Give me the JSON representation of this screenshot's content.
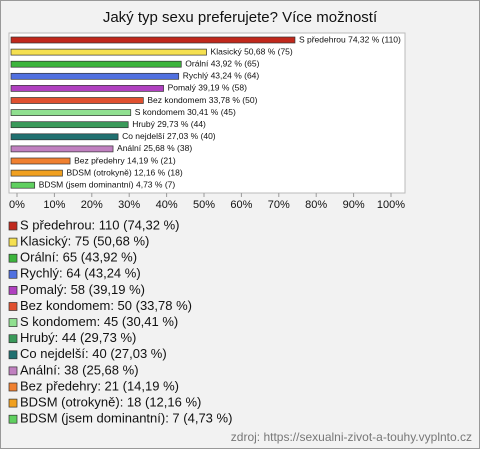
{
  "chart_data": {
    "type": "bar",
    "orientation": "horizontal",
    "title": "Jaký typ sexu preferujete? Více možností",
    "categories": [
      "S předehrou",
      "Klasický",
      "Orální",
      "Rychlý",
      "Pomalý",
      "Bez kondomem",
      "S kondomem",
      "Hrubý",
      "Co nejdelší",
      "Anální",
      "Bez předehry",
      "BDSM (otrokyně)",
      "BDSM (jsem dominantní)"
    ],
    "values": [
      74.32,
      50.68,
      43.92,
      43.24,
      39.19,
      33.78,
      30.41,
      29.73,
      27.03,
      25.68,
      14.19,
      12.16,
      4.73
    ],
    "value_labels": [
      "S předehrou 74,32 % (110)",
      "Klasický 50,68 % (75)",
      "Orální 43,92 % (65)",
      "Rychlý 43,24 % (64)",
      "Pomalý 39,19 % (58)",
      "Bez kondomem 33,78 % (50)",
      "S kondomem 30,41 % (45)",
      "Hrubý 29,73 % (44)",
      "Co nejdelší 27,03 % (40)",
      "Anální 25,68 % (38)",
      "Bez předehry 14,19 % (21)",
      "BDSM (otrokyně) 12,16 % (18)",
      "BDSM (jsem dominantní) 4,73 % (7)"
    ],
    "colors": [
      "#c0281c",
      "#f5e050",
      "#3cb43c",
      "#5070e0",
      "#b040c0",
      "#e05030",
      "#90e090",
      "#3a9a5a",
      "#207070",
      "#c080c0",
      "#f08030",
      "#f0a020",
      "#60d060"
    ],
    "legend_labels": [
      "S předehrou: 110 (74,32 %)",
      "Klasický: 75 (50,68 %)",
      "Orální: 65 (43,92 %)",
      "Rychlý: 64 (43,24 %)",
      "Pomalý: 58 (39,19 %)",
      "Bez kondomem: 50 (33,78 %)",
      "S kondomem: 45 (30,41 %)",
      "Hrubý: 44 (29,73 %)",
      "Co nejdelší: 40 (27,03 %)",
      "Anální: 38 (25,68 %)",
      "Bez předehry: 21 (14,19 %)",
      "BDSM (otrokyně): 18 (12,16 %)",
      "BDSM (jsem dominantní): 7 (4,73 %)"
    ],
    "xlim": [
      0,
      100
    ],
    "xticks": [
      {
        "value": 0,
        "label": "0%"
      },
      {
        "value": 10,
        "label": "10%"
      },
      {
        "value": 20,
        "label": "20%"
      },
      {
        "value": 30,
        "label": "30%"
      },
      {
        "value": 40,
        "label": "40%"
      },
      {
        "value": 50,
        "label": "50%"
      },
      {
        "value": 60,
        "label": "60%"
      },
      {
        "value": 70,
        "label": "70%"
      },
      {
        "value": 80,
        "label": "80%"
      },
      {
        "value": 90,
        "label": "90%"
      },
      {
        "value": 100,
        "label": "100%"
      }
    ],
    "source": "zdroj: https://sexualni-zivot-a-touhy.vyplnto.cz"
  }
}
